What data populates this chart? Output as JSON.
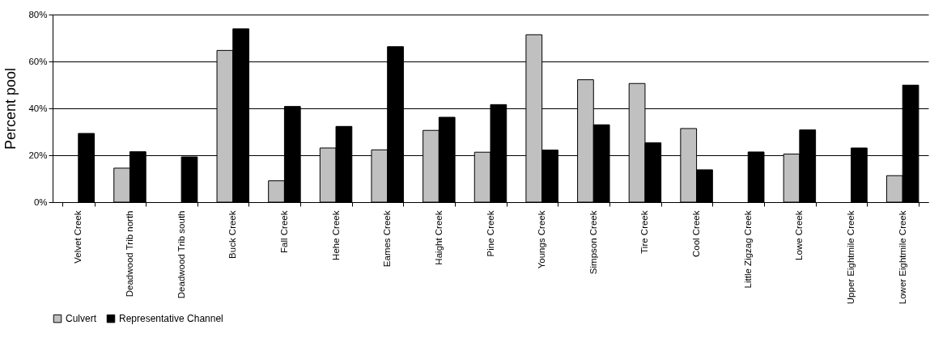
{
  "chart_data": {
    "type": "bar",
    "ylabel": "Percent pool",
    "categories": [
      "Velvet Creek",
      "Deadwood Trib north",
      "Deadwood Trib south",
      "Buck Creek",
      "Fall Creek",
      "Hehe Creek",
      "Eames Creek",
      "Haight Creek",
      "Pine Creek",
      "Youngs Creek",
      "Simpson Creek",
      "Tire Creek",
      "Cool Creek",
      "Little Zigzag Creek",
      "Lowe Creek",
      "Upper Eightmile Creek",
      "Lower Eightmile Creek"
    ],
    "series": [
      {
        "name": "Culvert",
        "color": "#c0c0c0",
        "values": [
          null,
          14.5,
          null,
          64.7,
          9.1,
          23.1,
          22.3,
          30.6,
          21.3,
          71.4,
          52.2,
          50.6,
          31.4,
          null,
          20.5,
          null,
          11.3
        ]
      },
      {
        "name": "Representative Channel",
        "color": "#000000",
        "values": [
          29.3,
          21.5,
          19.3,
          73.9,
          40.8,
          32.3,
          66.3,
          36.2,
          41.6,
          22.2,
          33.0,
          25.3,
          13.8,
          21.4,
          30.8,
          23.1,
          49.9
        ]
      }
    ],
    "ylim": [
      0,
      80
    ],
    "yticks": [
      {
        "value": 0,
        "label": "0%"
      },
      {
        "value": 20,
        "label": "20%"
      },
      {
        "value": 40,
        "label": "40%"
      },
      {
        "value": 60,
        "label": "60%"
      },
      {
        "value": 80,
        "label": "80%"
      }
    ],
    "grid": "y",
    "legend": "bottom"
  }
}
